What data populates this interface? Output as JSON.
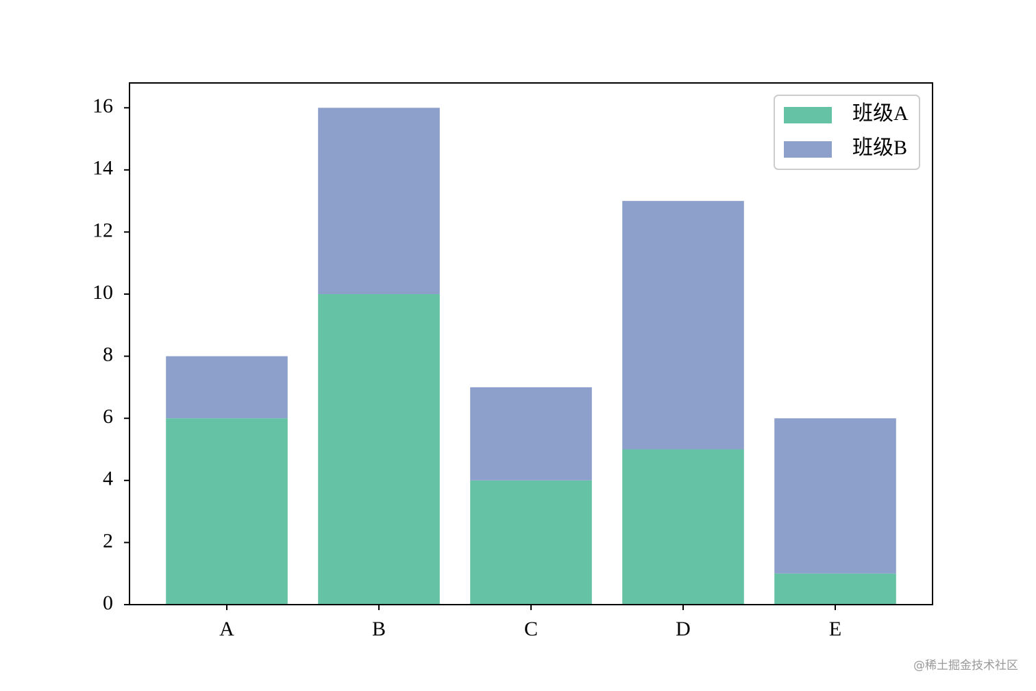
{
  "chart_data": {
    "type": "bar",
    "stacked": true,
    "categories": [
      "A",
      "B",
      "C",
      "D",
      "E"
    ],
    "series": [
      {
        "name": "班级A",
        "color": "#66c2a5",
        "values": [
          6,
          10,
          4,
          5,
          1
        ]
      },
      {
        "name": "班级B",
        "color": "#8da0cb",
        "values": [
          2,
          6,
          3,
          8,
          5
        ]
      }
    ],
    "ylim": [
      0,
      16.8
    ],
    "yticks": [
      0,
      2,
      4,
      6,
      8,
      10,
      12,
      14,
      16
    ],
    "legend": "upper right",
    "watermark": "@稀土掘金技术社区"
  }
}
